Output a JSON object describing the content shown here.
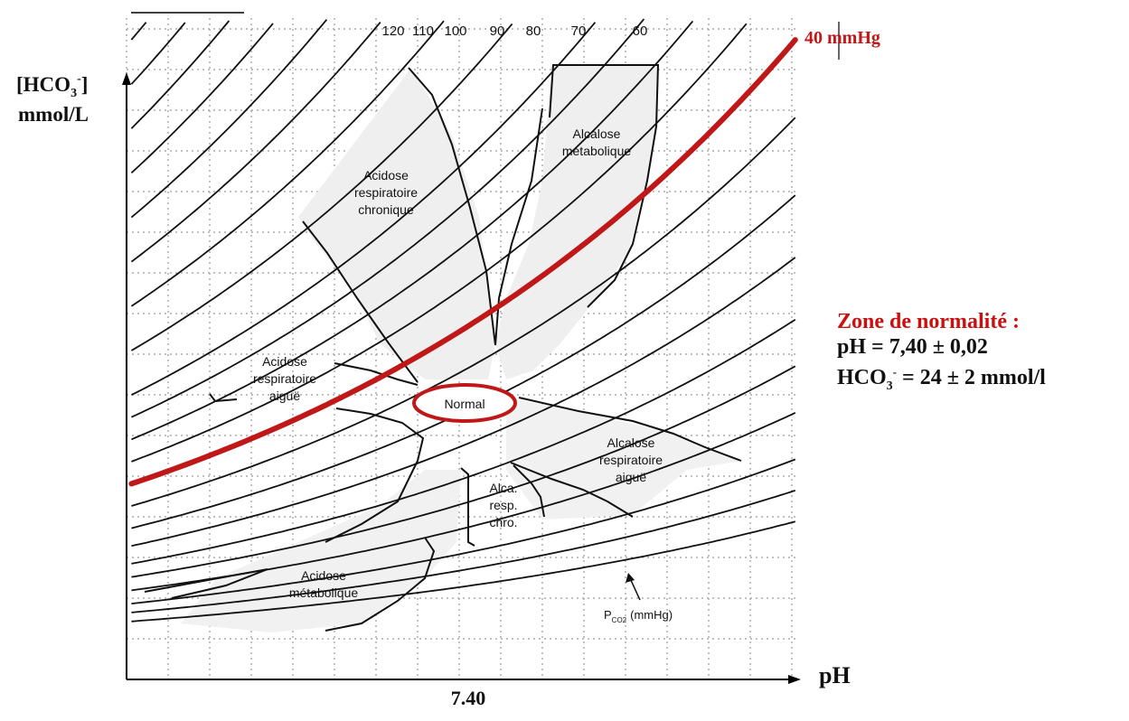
{
  "chart_data": {
    "type": "line",
    "title": "",
    "xlabel": "pH",
    "ylabel": "[HCO3-] mmol/L",
    "ylabel_line1": "[HCO",
    "ylabel_sub": "3",
    "ylabel_sup": "-",
    "ylabel_close": "]",
    "ylabel_line2": "mmol/L",
    "x_tick_label": "7.40",
    "pco2_axis_label": "PCO2 (mmHg)",
    "pco2_label_main": "P",
    "pco2_label_sub": "CO2",
    "pco2_label_unit": "(mmHg)",
    "isobars": [
      {
        "label": "120",
        "pco2": 120
      },
      {
        "label": "110",
        "pco2": 110
      },
      {
        "label": "100",
        "pco2": 100
      },
      {
        "label": "90",
        "pco2": 90
      },
      {
        "label": "80",
        "pco2": 80
      },
      {
        "label": "70",
        "pco2": 70
      },
      {
        "label": "60",
        "pco2": 60
      }
    ],
    "highlighted_isobar": {
      "label": "40 mmHg",
      "pco2": 40,
      "color": "#c01818"
    },
    "regions": [
      {
        "name": "acidose-respiratoire-chronique",
        "lines": [
          "Acidose",
          "respiratoire",
          "chronique"
        ]
      },
      {
        "name": "alcalose-metabolique",
        "lines": [
          "Alcalose",
          "métabolique"
        ]
      },
      {
        "name": "acidose-respiratoire-aigue",
        "lines": [
          "Acidose",
          "respiratoire",
          "aiguë"
        ]
      },
      {
        "name": "normal",
        "lines": [
          "Normal"
        ]
      },
      {
        "name": "alcalose-respiratoire-aigue",
        "lines": [
          "Alcalose",
          "respiratoire",
          "aiguë"
        ]
      },
      {
        "name": "alca-resp-chro",
        "lines": [
          "Alca.",
          "resp.",
          "chro."
        ]
      },
      {
        "name": "acidose-metabolique",
        "lines": [
          "Acidose",
          "métabolique"
        ]
      }
    ],
    "grid": true,
    "normal_zone_color": "#c01818"
  },
  "normal_zone": {
    "title": "Zone de normalité :",
    "ph_line": "pH  = 7,40 ± 0,02",
    "hco3_prefix": "HCO",
    "hco3_sub": "3",
    "hco3_sup": "-",
    "hco3_rest": " = 24 ± 2 mmol/l"
  }
}
